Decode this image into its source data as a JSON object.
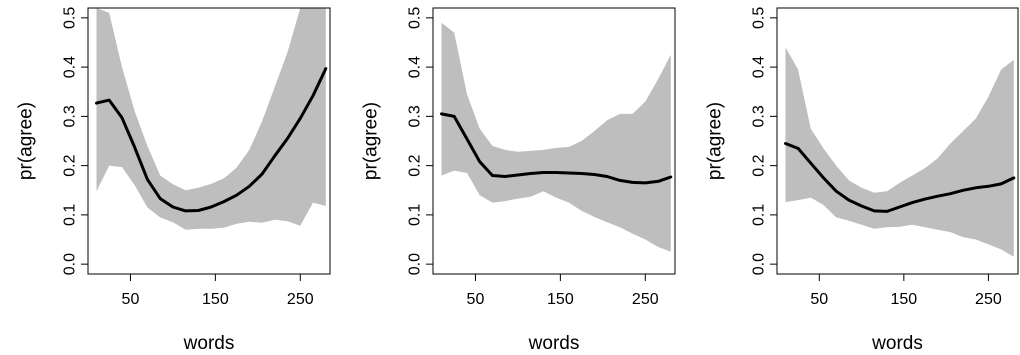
{
  "chart_data": [
    {
      "type": "line",
      "xlabel": "words",
      "ylabel": "pr(agree)",
      "xlim": [
        0,
        285
      ],
      "ylim": [
        -0.02,
        0.52
      ],
      "xticks": [
        50,
        150,
        250
      ],
      "xtick_labels": [
        "50",
        "150",
        "250"
      ],
      "yticks": [
        0.0,
        0.1,
        0.2,
        0.3,
        0.4,
        0.5
      ],
      "ytick_labels": [
        "0.0",
        "0.1",
        "0.2",
        "0.3",
        "0.4",
        "0.5"
      ],
      "grid": false,
      "band_color": "#bebebe",
      "line_color": "#000000",
      "x": [
        10,
        25,
        40,
        55,
        70,
        85,
        100,
        115,
        130,
        145,
        160,
        175,
        190,
        205,
        220,
        235,
        250,
        265,
        280
      ],
      "values": [
        0.327,
        0.333,
        0.297,
        0.237,
        0.172,
        0.133,
        0.116,
        0.108,
        0.109,
        0.116,
        0.127,
        0.14,
        0.158,
        0.183,
        0.22,
        0.255,
        0.296,
        0.342,
        0.397
      ],
      "lower": [
        0.148,
        0.2,
        0.197,
        0.16,
        0.115,
        0.095,
        0.085,
        0.07,
        0.072,
        0.072,
        0.074,
        0.082,
        0.086,
        0.084,
        0.09,
        0.087,
        0.078,
        0.125,
        0.118
      ],
      "upper": [
        0.52,
        0.51,
        0.4,
        0.31,
        0.24,
        0.18,
        0.162,
        0.15,
        0.155,
        0.163,
        0.174,
        0.196,
        0.232,
        0.29,
        0.36,
        0.43,
        0.52,
        0.52,
        0.52
      ]
    },
    {
      "type": "line",
      "xlabel": "words",
      "ylabel": "pr(agree)",
      "xlim": [
        0,
        285
      ],
      "ylim": [
        -0.02,
        0.52
      ],
      "xticks": [
        50,
        150,
        250
      ],
      "xtick_labels": [
        "50",
        "150",
        "250"
      ],
      "yticks": [
        0.0,
        0.1,
        0.2,
        0.3,
        0.4,
        0.5
      ],
      "ytick_labels": [
        "0.0",
        "0.1",
        "0.2",
        "0.3",
        "0.4",
        "0.5"
      ],
      "grid": false,
      "band_color": "#bebebe",
      "line_color": "#000000",
      "x": [
        10,
        25,
        40,
        55,
        70,
        85,
        100,
        115,
        130,
        145,
        160,
        175,
        190,
        205,
        220,
        235,
        250,
        265,
        280
      ],
      "values": [
        0.305,
        0.3,
        0.254,
        0.208,
        0.18,
        0.178,
        0.181,
        0.184,
        0.186,
        0.186,
        0.185,
        0.184,
        0.182,
        0.178,
        0.17,
        0.166,
        0.165,
        0.168,
        0.177
      ],
      "lower": [
        0.18,
        0.19,
        0.185,
        0.14,
        0.125,
        0.128,
        0.133,
        0.137,
        0.148,
        0.135,
        0.125,
        0.108,
        0.096,
        0.085,
        0.075,
        0.062,
        0.05,
        0.035,
        0.025
      ],
      "upper": [
        0.49,
        0.47,
        0.345,
        0.275,
        0.24,
        0.232,
        0.228,
        0.23,
        0.232,
        0.236,
        0.238,
        0.25,
        0.27,
        0.292,
        0.305,
        0.305,
        0.33,
        0.375,
        0.425
      ]
    },
    {
      "type": "line",
      "xlabel": "words",
      "ylabel": "pr(agree)",
      "xlim": [
        0,
        285
      ],
      "ylim": [
        -0.02,
        0.52
      ],
      "xticks": [
        50,
        150,
        250
      ],
      "xtick_labels": [
        "50",
        "150",
        "250"
      ],
      "yticks": [
        0.0,
        0.1,
        0.2,
        0.3,
        0.4,
        0.5
      ],
      "ytick_labels": [
        "0.0",
        "0.1",
        "0.2",
        "0.3",
        "0.4",
        "0.5"
      ],
      "grid": false,
      "band_color": "#bebebe",
      "line_color": "#000000",
      "x": [
        10,
        25,
        40,
        55,
        70,
        85,
        100,
        115,
        130,
        145,
        160,
        175,
        190,
        205,
        220,
        235,
        250,
        265,
        280
      ],
      "values": [
        0.245,
        0.235,
        0.205,
        0.175,
        0.148,
        0.13,
        0.118,
        0.108,
        0.107,
        0.116,
        0.125,
        0.132,
        0.138,
        0.143,
        0.15,
        0.155,
        0.158,
        0.163,
        0.175
      ],
      "lower": [
        0.126,
        0.13,
        0.135,
        0.12,
        0.095,
        0.088,
        0.08,
        0.072,
        0.075,
        0.076,
        0.08,
        0.075,
        0.07,
        0.065,
        0.055,
        0.05,
        0.04,
        0.03,
        0.015
      ],
      "upper": [
        0.44,
        0.395,
        0.275,
        0.235,
        0.2,
        0.17,
        0.155,
        0.145,
        0.148,
        0.165,
        0.18,
        0.195,
        0.215,
        0.245,
        0.27,
        0.295,
        0.34,
        0.395,
        0.415
      ]
    }
  ]
}
